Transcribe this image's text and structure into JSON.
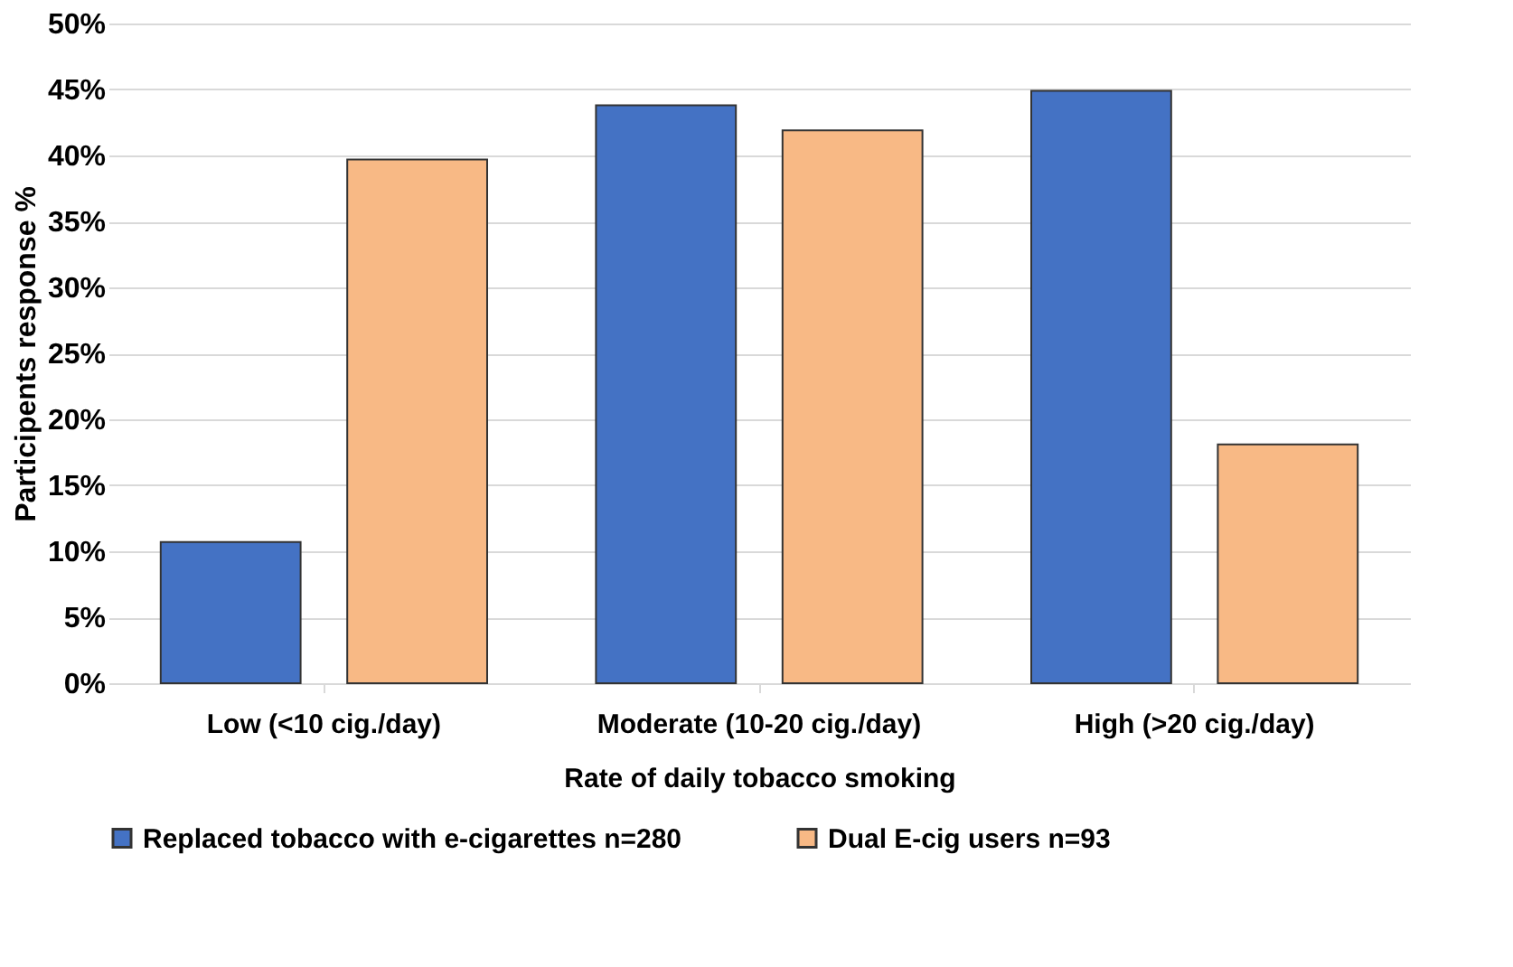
{
  "chart_data": {
    "type": "bar",
    "categories": [
      "Low (<10 cig./day)",
      "Moderate (10-20 cig./day)",
      "High (>20 cig./day)"
    ],
    "xlabel": "Rate of daily tobacco smoking",
    "ylabel": "Participents response %",
    "series": [
      {
        "name": "Replaced tobacco with e-cigarettes n=280",
        "color": "#4472c4",
        "values": [
          10.7,
          43.8,
          44.9
        ]
      },
      {
        "name": "Dual E-cig users n=93",
        "color": "#f8b985",
        "values": [
          39.7,
          41.9,
          18.1
        ]
      }
    ],
    "ylim": [
      0,
      50
    ],
    "yticks": [
      {
        "value": 0,
        "label": "0%"
      },
      {
        "value": 5,
        "label": "5%"
      },
      {
        "value": 10,
        "label": "10%"
      },
      {
        "value": 15,
        "label": "15%"
      },
      {
        "value": 20,
        "label": "20%"
      },
      {
        "value": 25,
        "label": "25%"
      },
      {
        "value": 30,
        "label": "30%"
      },
      {
        "value": 35,
        "label": "35%"
      },
      {
        "value": 40,
        "label": "40%"
      },
      {
        "value": 45,
        "label": "45%"
      },
      {
        "value": 50,
        "label": "50%"
      }
    ],
    "grid": "y",
    "legend": "bottom"
  }
}
